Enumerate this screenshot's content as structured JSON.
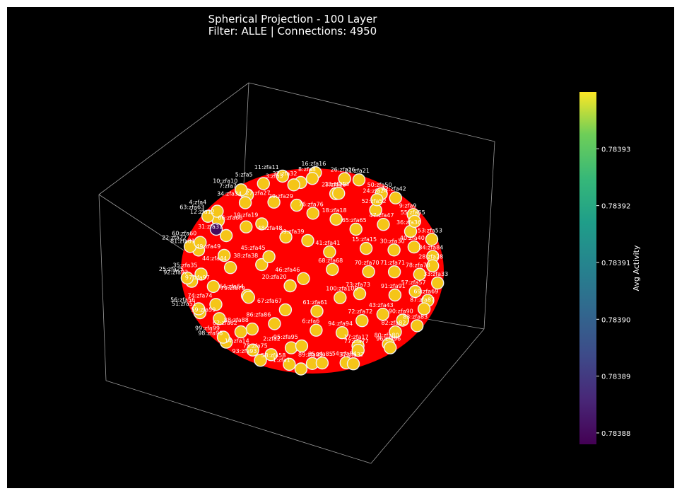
{
  "chart_data": {
    "type": "scatter",
    "title_lines": [
      "Spherical Projection - 100 Layer",
      "Filter: ALLE | Connections: 4950"
    ],
    "colorbar": {
      "label": "Avg Activity",
      "colormap": "viridis",
      "range": [
        0.783878,
        0.78394
      ],
      "ticks": [
        "0.78388",
        "0.78389",
        "0.78390",
        "0.78391",
        "0.78392",
        "0.78393"
      ],
      "tick_values": [
        0.78388,
        0.78389,
        0.7839,
        0.78391,
        0.78392,
        0.78393
      ]
    },
    "edge_color": "#ff0000",
    "node_color": "#f5c518",
    "highlight_node_color": "#440154",
    "grid": false,
    "labels": [
      "8:zfa8",
      "3:zfa3",
      "16:zfa16",
      "13:zfa13",
      "5:zfa5",
      "21:zfa21",
      "29:zfa29",
      "11:zfa11",
      "24:zfa24",
      "34:zfa34",
      "26:zfa26",
      "18:zfa18",
      "10:zfa10",
      "42:zfa42",
      "19:zfa19",
      "32:zfa32",
      "47:zfa47",
      "4:zfa4",
      "50:zfa50",
      "39:zfa39",
      "7:zfa7",
      "55:zfa55",
      "31:zfa31",
      "23:zfa23",
      "15:zfa15",
      "63:zfa63",
      "9:zfa9",
      "45:zfa45",
      "27:zfa27",
      "40:zfa40",
      "60:zfa60",
      "52:zfa52",
      "68:zfa68",
      "12:zfa12",
      "53:zfa53",
      "44:zfa44",
      "76:zfa76",
      "71:zfa71",
      "22:zfa22",
      "36:zfa36",
      "20:zfa20",
      "66:zfa66",
      "28:zfa28",
      "35:zfa35",
      "65:zfa65",
      "73:zfa73",
      "81:zfa81",
      "84:zfa84",
      "79:zfa79",
      "48:zfa48",
      "57:zfa57",
      "25:zfa25",
      "30:zfa30",
      "61:zfa61",
      "49:zfa49",
      "33:zfa33",
      "74:zfa74",
      "41:zfa41",
      "43:zfa43",
      "92:zfa92",
      "78:zfa78",
      "86:zfa86",
      "38:zfa38",
      "87:zfa87",
      "56:zfa56",
      "70:zfa70",
      "94:zfa94",
      "97:zfa97",
      "69:zfa69",
      "62:zfa62",
      "46:zfa46",
      "82:zfa82",
      "51:zfa51",
      "91:zfa91",
      "95:zfa95",
      "64:zfa64",
      "83:zfa83",
      "99:zfa99",
      "100:zfa100",
      "77:zfa77",
      "59:zfa59",
      "90:zfa90",
      "75:zfa75",
      "67:zfa67",
      "96:zfa96",
      "98:zfa98",
      "72:zfa72",
      "85:zfa85",
      "88:zfa88",
      "80:zfa80",
      "93:zfa93",
      "6:zfa6",
      "37:zfa37",
      "14:zfa14",
      "17:zfa17",
      "1:zfa1",
      "2:zfa2",
      "54:zfa54",
      "58:zfa58",
      "89:zfa89"
    ],
    "nodes": [
      {
        "id": 1,
        "activity": 0.783936
      },
      {
        "id": 2,
        "activity": 0.783936
      },
      {
        "id": 3,
        "activity": 0.783936
      },
      {
        "id": 4,
        "activity": 0.783936
      },
      {
        "id": 5,
        "activity": 0.783936
      },
      {
        "id": 6,
        "activity": 0.783936
      },
      {
        "id": 7,
        "activity": 0.783936
      },
      {
        "id": 8,
        "activity": 0.783936
      },
      {
        "id": 9,
        "activity": 0.783936
      },
      {
        "id": 10,
        "activity": 0.783936
      },
      {
        "id": 15,
        "activity": 0.78388
      }
    ]
  }
}
